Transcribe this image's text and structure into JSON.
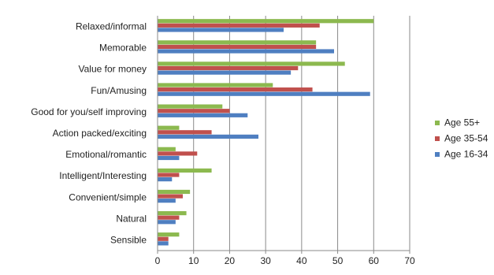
{
  "chart_data": {
    "type": "bar",
    "orientation": "horizontal",
    "title": "",
    "xlabel": "",
    "ylabel": "",
    "xlim": [
      0,
      70
    ],
    "xticks": [
      0,
      10,
      20,
      30,
      40,
      50,
      60,
      70
    ],
    "grid": "vertical",
    "legend_position": "right",
    "categories": [
      "Relaxed/informal",
      "Memorable",
      "Value for money",
      "Fun/Amusing",
      "Good for you/self improving",
      "Action packed/exciting",
      "Emotional/romantic",
      "Intelligent/Interesting",
      "Convenient/simple",
      "Natural",
      "Sensible"
    ],
    "series": [
      {
        "name": "Age 55+",
        "color": "#8cb94f",
        "values": [
          60,
          44,
          52,
          32,
          18,
          6,
          5,
          15,
          9,
          8,
          6
        ]
      },
      {
        "name": "Age 35-54",
        "color": "#c0504d",
        "values": [
          45,
          44,
          39,
          43,
          20,
          15,
          11,
          6,
          7,
          6,
          3
        ]
      },
      {
        "name": "Age 16-34",
        "color": "#4f7fc1",
        "values": [
          35,
          49,
          37,
          59,
          25,
          28,
          6,
          4,
          5,
          5,
          3
        ]
      }
    ]
  }
}
